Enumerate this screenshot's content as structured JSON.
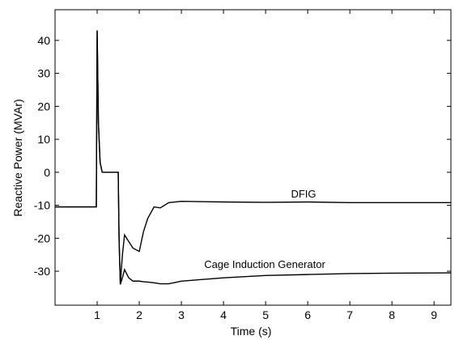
{
  "chart_data": {
    "type": "line",
    "x_label": "Time (s)",
    "y_label": "Reactive Power (MVAr)",
    "x": [
      0,
      0.98,
      1.0,
      1.03,
      1.07,
      1.12,
      1.5,
      1.52,
      1.55,
      1.6,
      1.65,
      1.75,
      1.85,
      2.0,
      2.1,
      2.2,
      2.35,
      2.5,
      2.7,
      3.0,
      4.0,
      5.0,
      6.0,
      7.0,
      8.0,
      9.4
    ],
    "series": [
      {
        "name": "DFIG",
        "color": "#000000",
        "values": [
          -10.5,
          -10.5,
          43,
          15,
          3,
          0,
          0,
          -20,
          -34,
          -25,
          -19,
          -21,
          -23,
          -24,
          -18,
          -14,
          -10.5,
          -10.8,
          -9.2,
          -8.8,
          -9,
          -9.1,
          -9,
          -9.2,
          -9.2,
          -9.2
        ]
      },
      {
        "name": "Cage Induction Generator",
        "color": "#000000",
        "values": [
          -10.5,
          -10.5,
          43,
          15,
          3,
          0,
          0,
          -20,
          -34,
          -32,
          -29.5,
          -32,
          -33,
          -33,
          -33.2,
          -33.3,
          -33.5,
          -33.8,
          -33.8,
          -33,
          -32,
          -31.3,
          -31,
          -30.7,
          -30.6,
          -30.5
        ]
      }
    ],
    "annotations": [
      "DFIG",
      "Cage Induction Generator"
    ],
    "xlim": [
      0,
      9.4
    ],
    "xticks": [
      1,
      2,
      3,
      4,
      5,
      6,
      7,
      8,
      9
    ],
    "ylim": [
      -40.3,
      49.3
    ],
    "yticks": [
      -30,
      -20,
      -10,
      0,
      10,
      20,
      30,
      40
    ],
    "grid": false
  }
}
